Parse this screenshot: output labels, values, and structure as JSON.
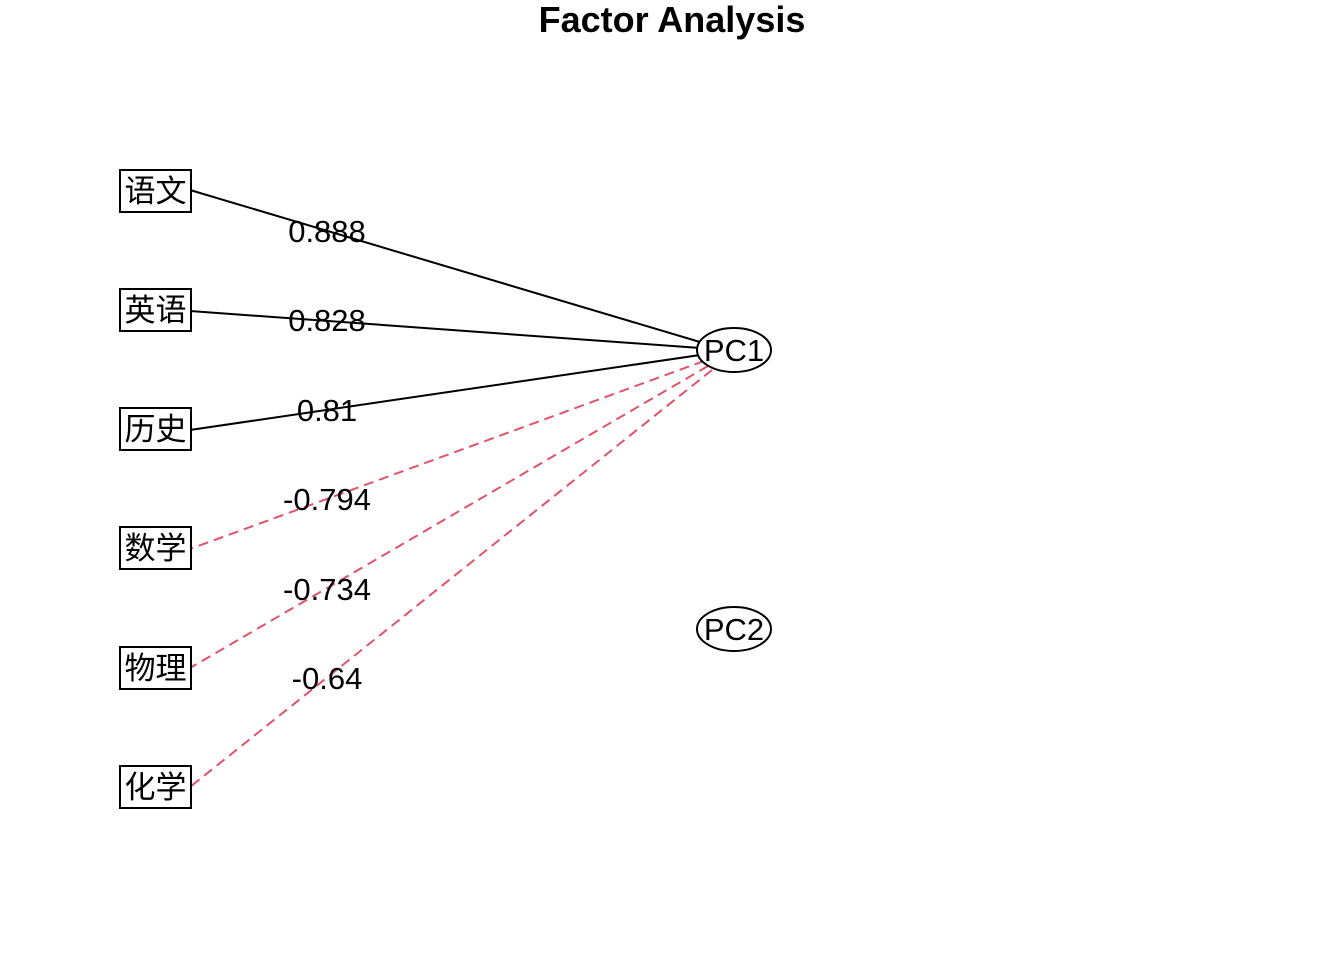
{
  "title": "Factor Analysis",
  "factors": [
    "PC1",
    "PC2"
  ],
  "variables": [
    "语文",
    "英语",
    "历史",
    "数学",
    "物理",
    "化学"
  ],
  "loadings": [
    {
      "variable": "语文",
      "factor": "PC1",
      "value": "0.888",
      "sign": "positive"
    },
    {
      "variable": "英语",
      "factor": "PC1",
      "value": "0.828",
      "sign": "positive"
    },
    {
      "variable": "历史",
      "factor": "PC1",
      "value": "0.81",
      "sign": "positive"
    },
    {
      "variable": "数学",
      "factor": "PC1",
      "value": "-0.794",
      "sign": "negative"
    },
    {
      "variable": "物理",
      "factor": "PC1",
      "value": "-0.734",
      "sign": "negative"
    },
    {
      "variable": "化学",
      "factor": "PC1",
      "value": "-0.64",
      "sign": "negative"
    }
  ],
  "colors": {
    "positive": "#000000",
    "negative": "#DF536B"
  }
}
